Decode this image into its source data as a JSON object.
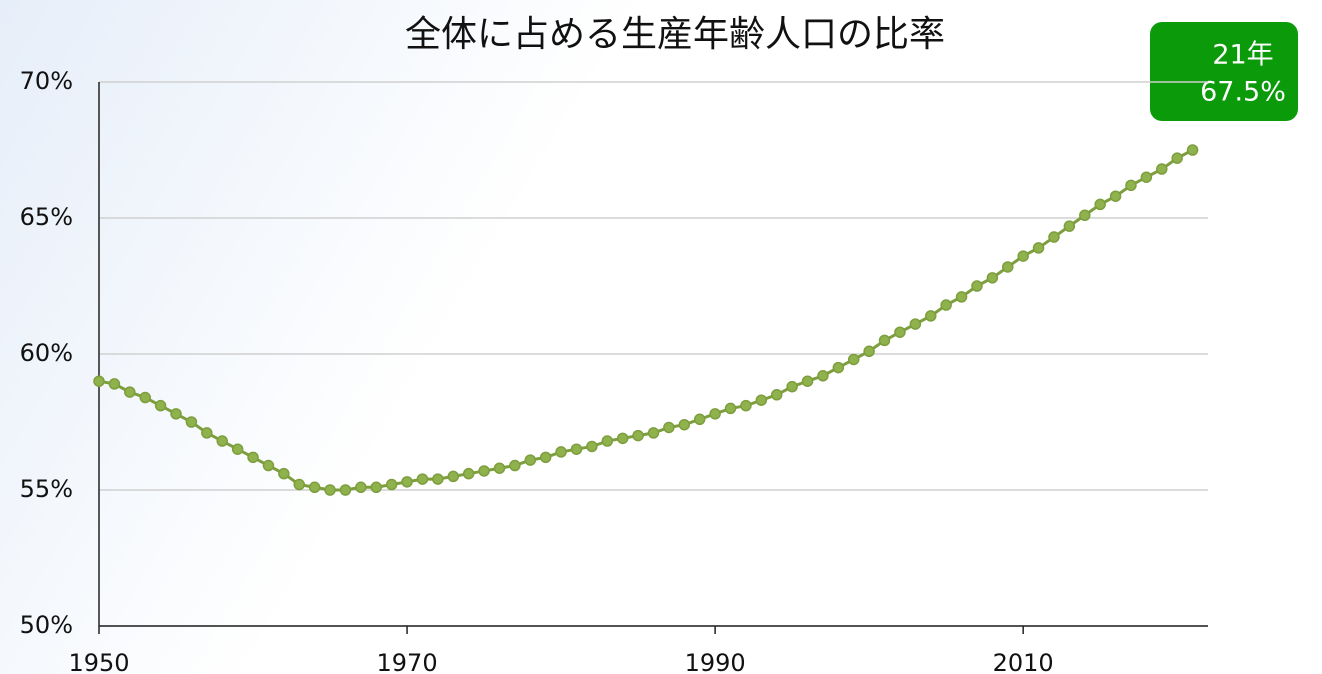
{
  "chart_data": {
    "type": "line",
    "title": "全体に占める生産年齢人口の比率",
    "x": [
      1950,
      1951,
      1952,
      1953,
      1954,
      1955,
      1956,
      1957,
      1958,
      1959,
      1960,
      1961,
      1962,
      1963,
      1964,
      1965,
      1966,
      1967,
      1968,
      1969,
      1970,
      1971,
      1972,
      1973,
      1974,
      1975,
      1976,
      1977,
      1978,
      1979,
      1980,
      1981,
      1982,
      1983,
      1984,
      1985,
      1986,
      1987,
      1988,
      1989,
      1990,
      1991,
      1992,
      1993,
      1994,
      1995,
      1996,
      1997,
      1998,
      1999,
      2000,
      2001,
      2002,
      2003,
      2004,
      2005,
      2006,
      2007,
      2008,
      2009,
      2010,
      2011,
      2012,
      2013,
      2014,
      2015,
      2016,
      2017,
      2018,
      2019,
      2020,
      2021
    ],
    "values": [
      59.0,
      58.9,
      58.6,
      58.4,
      58.1,
      57.8,
      57.5,
      57.1,
      56.8,
      56.5,
      56.2,
      55.9,
      55.6,
      55.2,
      55.1,
      55.0,
      55.0,
      55.1,
      55.1,
      55.2,
      55.3,
      55.4,
      55.4,
      55.5,
      55.6,
      55.7,
      55.8,
      55.9,
      56.1,
      56.2,
      56.4,
      56.5,
      56.6,
      56.8,
      56.9,
      57.0,
      57.1,
      57.3,
      57.4,
      57.6,
      57.8,
      58.0,
      58.1,
      58.3,
      58.5,
      58.8,
      59.0,
      59.2,
      59.5,
      59.8,
      60.1,
      60.5,
      60.8,
      61.1,
      61.4,
      61.8,
      62.1,
      62.5,
      62.8,
      63.2,
      63.6,
      63.9,
      64.3,
      64.7,
      65.1,
      65.5,
      65.8,
      66.2,
      66.5,
      66.8,
      67.2,
      67.5
    ],
    "color": "#7d9e3e",
    "xlim": [
      1950,
      2022
    ],
    "xticks": [
      1950,
      1970,
      1990,
      2010
    ],
    "ylim": [
      50,
      70
    ],
    "yticks": [
      {
        "value": 50,
        "label": "50%"
      },
      {
        "value": 55,
        "label": "55%"
      },
      {
        "value": 60,
        "label": "60%"
      },
      {
        "value": 65,
        "label": "65%"
      },
      {
        "value": 70,
        "label": "70%"
      }
    ],
    "grid": true,
    "annotation": {
      "year_label": "21年",
      "value_label": "67.5%"
    }
  }
}
